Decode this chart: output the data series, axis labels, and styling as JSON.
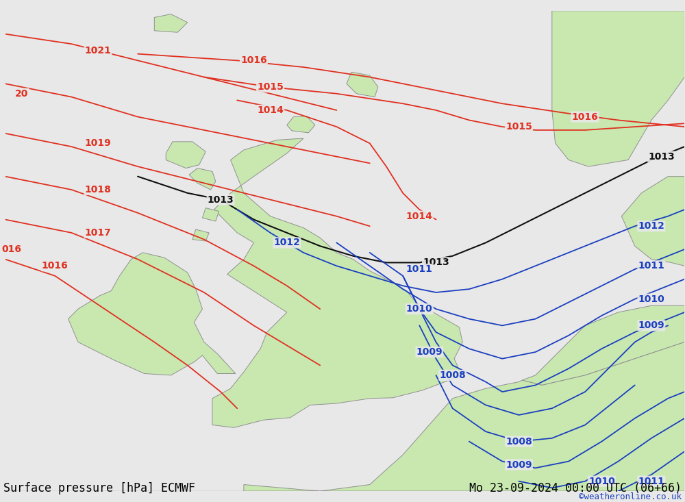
{
  "title_left": "Surface pressure [hPa] ECMWF",
  "title_right": "Mo 23-09-2024 00:00 UTC (06+66)",
  "watermark": "©weatheronline.co.uk",
  "bg_color": "#e8e8e8",
  "land_color": "#c8e8b0",
  "sea_color": "#e8e8e8",
  "isobar_red_color": "#e03020",
  "isobar_black_color": "#101010",
  "isobar_blue_color": "#1a3fbf",
  "coastline_color": "#909090",
  "font_size_labels": 10,
  "font_size_title": 12,
  "font_size_watermark": 9,
  "xlim": [
    -12.0,
    8.5
  ],
  "ylim": [
    48.0,
    62.5
  ],
  "figsize": [
    10.0,
    7.33
  ],
  "dpi": 100
}
